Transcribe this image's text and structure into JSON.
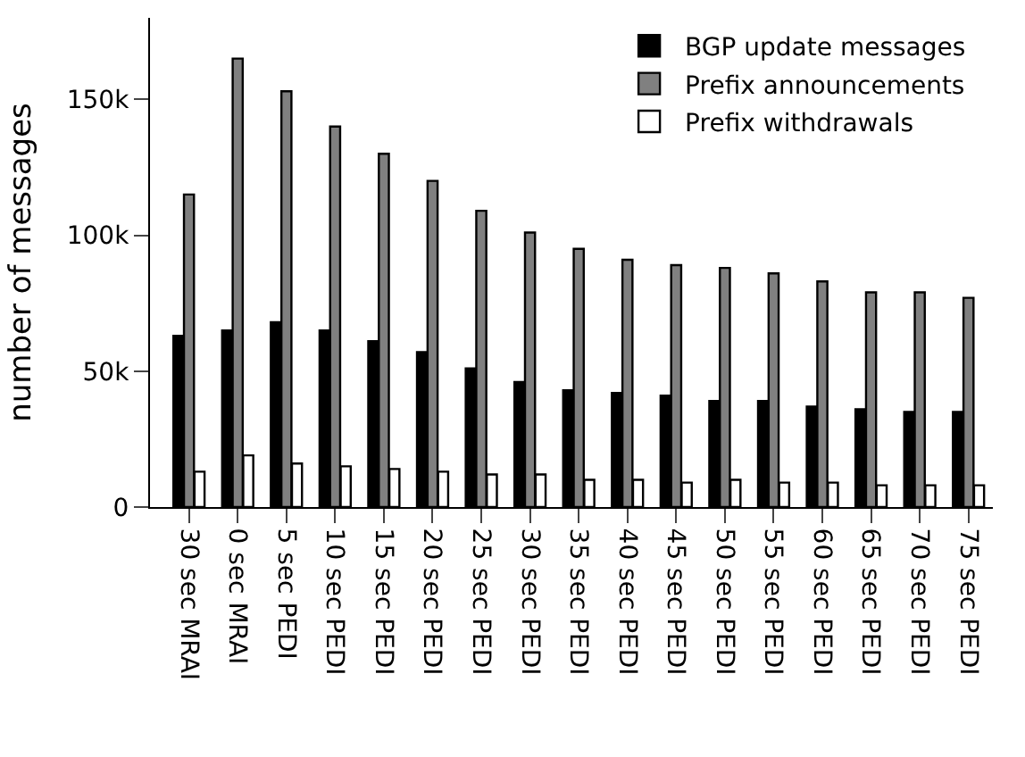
{
  "chart_data": {
    "type": "bar",
    "ylabel": "number of messages",
    "categories": [
      "30 sec MRAI",
      "0 sec MRAI",
      "5 sec PEDI",
      "10 sec PEDI",
      "15 sec PEDI",
      "20 sec PEDI",
      "25 sec PEDI",
      "30 sec PEDI",
      "35 sec PEDI",
      "40 sec PEDI",
      "45 sec PEDI",
      "50 sec PEDI",
      "55 sec PEDI",
      "60 sec PEDI",
      "65 sec PEDI",
      "70 sec PEDI",
      "75 sec PEDI"
    ],
    "series": [
      {
        "name": "BGP update messages",
        "color": "#000000",
        "values": [
          63000,
          65000,
          68000,
          65000,
          61000,
          57000,
          51000,
          46000,
          43000,
          42000,
          41000,
          39000,
          39000,
          37000,
          36000,
          35000,
          35000
        ]
      },
      {
        "name": "Prefix announcements",
        "color": "#808080",
        "values": [
          115000,
          165000,
          153000,
          140000,
          130000,
          120000,
          109000,
          101000,
          95000,
          91000,
          89000,
          88000,
          86000,
          83000,
          79000,
          79000,
          77000
        ]
      },
      {
        "name": "Prefix withdrawals",
        "color": "#ffffff",
        "values": [
          13000,
          19000,
          16000,
          15000,
          14000,
          13000,
          12000,
          12000,
          10000,
          10000,
          9000,
          10000,
          9000,
          9000,
          8000,
          8000,
          8000
        ]
      }
    ],
    "ylim": [
      0,
      180000
    ],
    "yticks": [
      {
        "value": 0,
        "label": "0"
      },
      {
        "value": 50000,
        "label": "50k"
      },
      {
        "value": 100000,
        "label": "100k"
      },
      {
        "value": 150000,
        "label": "150k"
      }
    ],
    "legend": "top right"
  }
}
